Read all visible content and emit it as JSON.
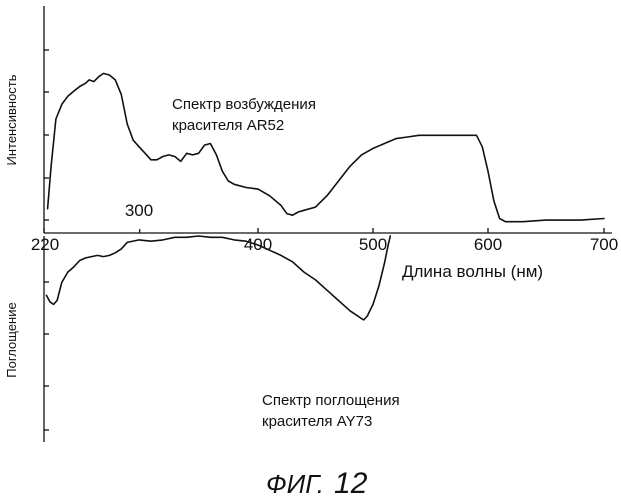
{
  "chart_data": {
    "type": "line",
    "x_tick_labels": [
      "220",
      "400",
      "500",
      "600",
      "700"
    ],
    "x_tick_values": [
      220,
      400,
      500,
      600,
      700
    ],
    "extra_label": "300",
    "xlabel": "Длина волны (нм)",
    "xlim": [
      220,
      700
    ],
    "panels": [
      {
        "name": "excitation",
        "ylabel": "Интенсивность",
        "ylim": [
          0,
          1
        ],
        "annotation": [
          "Спектр возбуждения",
          "красителя AR52"
        ],
        "series": [
          {
            "name": "Спектр возбуждения красителя AR52",
            "x": [
              223,
              226,
              230,
              235,
              240,
              245,
              250,
              255,
              258,
              262,
              266,
              270,
              275,
              280,
              285,
              290,
              295,
              300,
              305,
              310,
              315,
              320,
              325,
              330,
              335,
              340,
              345,
              350,
              355,
              360,
              365,
              370,
              375,
              380,
              390,
              400,
              410,
              420,
              425,
              430,
              435,
              440,
              450,
              460,
              470,
              480,
              490,
              500,
              510,
              520,
              530,
              540,
              550,
              560,
              570,
              580,
              590,
              595,
              600,
              605,
              610,
              615,
              620,
              630,
              650,
              680,
              700
            ],
            "y": [
              0.1,
              0.36,
              0.65,
              0.74,
              0.79,
              0.82,
              0.85,
              0.87,
              0.89,
              0.88,
              0.91,
              0.93,
              0.92,
              0.89,
              0.8,
              0.62,
              0.52,
              0.48,
              0.44,
              0.4,
              0.4,
              0.42,
              0.43,
              0.42,
              0.39,
              0.44,
              0.43,
              0.44,
              0.49,
              0.5,
              0.43,
              0.33,
              0.27,
              0.25,
              0.23,
              0.22,
              0.18,
              0.12,
              0.07,
              0.06,
              0.08,
              0.09,
              0.11,
              0.18,
              0.27,
              0.36,
              0.43,
              0.47,
              0.5,
              0.53,
              0.54,
              0.55,
              0.55,
              0.55,
              0.55,
              0.55,
              0.55,
              0.48,
              0.33,
              0.15,
              0.04,
              0.02,
              0.02,
              0.02,
              0.03,
              0.03,
              0.04
            ]
          }
        ]
      },
      {
        "name": "absorption",
        "ylabel": "Поглощение",
        "ylim": [
          0,
          1
        ],
        "annotation": [
          "Спектр поглощения",
          "красителя AY73"
        ],
        "series": [
          {
            "name": "Спектр поглощения красителя AY73",
            "x": [
              222,
              225,
              228,
              231,
              235,
              240,
              245,
              250,
              255,
              260,
              265,
              270,
              275,
              280,
              285,
              290,
              300,
              310,
              320,
              330,
              340,
              350,
              360,
              370,
              380,
              390,
              400,
              410,
              420,
              430,
              440,
              450,
              460,
              470,
              475,
              480,
              485,
              490,
              492,
              495,
              500,
              505,
              510,
              513,
              515
            ],
            "y": [
              0.54,
              0.49,
              0.47,
              0.5,
              0.64,
              0.72,
              0.76,
              0.81,
              0.83,
              0.84,
              0.85,
              0.84,
              0.85,
              0.87,
              0.9,
              0.95,
              0.97,
              0.96,
              0.97,
              0.99,
              0.99,
              1.0,
              0.99,
              0.99,
              0.97,
              0.96,
              0.93,
              0.89,
              0.85,
              0.8,
              0.72,
              0.66,
              0.58,
              0.5,
              0.46,
              0.42,
              0.39,
              0.36,
              0.35,
              0.38,
              0.47,
              0.61,
              0.79,
              0.92,
              1.0
            ]
          }
        ]
      }
    ]
  },
  "figure_caption": {
    "prefix": "ФИГ.",
    "number": "12"
  }
}
